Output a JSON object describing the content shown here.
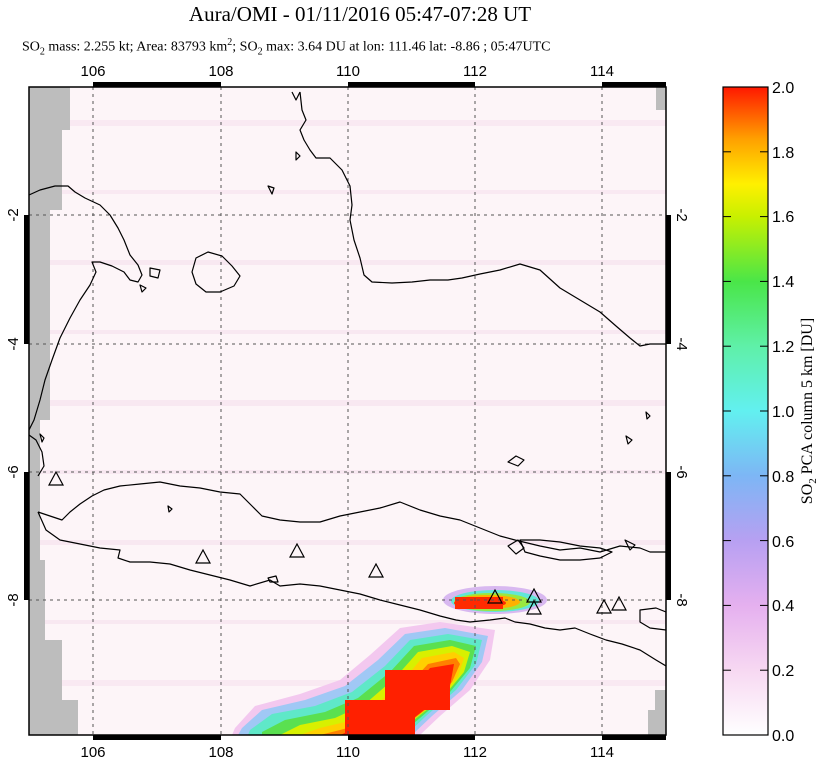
{
  "title": "Aura/OMI - 01/11/2016 05:47-07:28 UT",
  "subtitle": {
    "p1": "SO",
    "p1_sub": "2",
    "p2": " mass: 2.255 kt; Area: 83793 km",
    "p2_sup": "2",
    "p3": "; SO",
    "p3_sub": "2",
    "p4": " max: 3.64 DU at lon: 111.46 lat: -8.86 ; 05:47UTC"
  },
  "map": {
    "lon_ticks": [
      "106",
      "108",
      "110",
      "112",
      "114"
    ],
    "lat_ticks_left": [
      "-2",
      "-4",
      "-6",
      "-8"
    ],
    "lat_ticks_right": [
      "-2",
      "-4",
      "-6",
      "-8"
    ],
    "volcano_marker": "triangle-icon"
  },
  "colorbar": {
    "ticks": [
      "2.0",
      "1.8",
      "1.6",
      "1.4",
      "1.2",
      "1.0",
      "0.8",
      "0.6",
      "0.4",
      "0.2",
      "0.0"
    ],
    "label_a": "SO",
    "label_sub": "2",
    "label_b": " PCA column 5 km [DU]",
    "colors": [
      "#ffffff",
      "#f5c8ee",
      "#d9a3f0",
      "#9a9af5",
      "#5fc8f5",
      "#62f5f0",
      "#63f59a",
      "#3ee040",
      "#c8f000",
      "#fff000",
      "#ffa500",
      "#ff5000",
      "#ff1800"
    ]
  }
}
